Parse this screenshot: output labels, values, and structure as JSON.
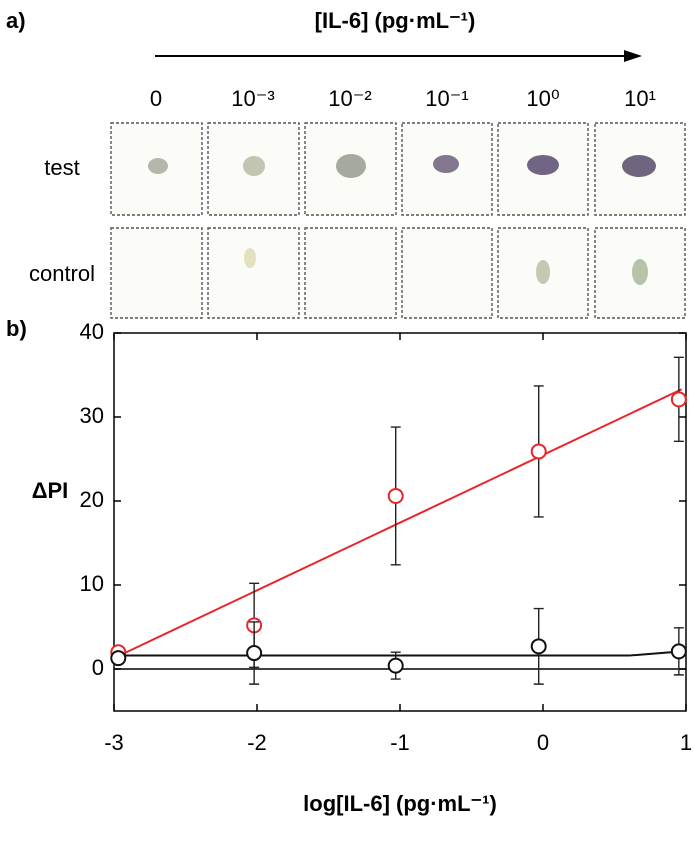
{
  "panel_a": {
    "label": "a)",
    "title": "[IL-6] (pg·mL⁻¹)",
    "columns": [
      "0",
      "10⁻³",
      "10⁻²",
      "10⁻¹",
      "10⁰",
      "10¹"
    ],
    "rows": [
      "test",
      "control"
    ]
  },
  "chart_data": {
    "type": "scatter",
    "panel_label": "b)",
    "x_label": "log[IL-6] (pg·mL⁻¹)",
    "y_label": "ΔPI",
    "x": [
      -2.97,
      -2.02,
      -1.03,
      -0.03,
      0.95
    ],
    "xlim": [
      -3,
      1
    ],
    "xticks": [
      -3,
      -2,
      -1,
      0,
      1
    ],
    "ylim": [
      -5,
      40
    ],
    "yticks": [
      0,
      10,
      20,
      30,
      40
    ],
    "baseline": 0,
    "series": [
      {
        "color": "#e8262a",
        "values": [
          2,
          5.2,
          20.6,
          25.9,
          32.1
        ],
        "errors": [
          0,
          5,
          8.2,
          7.8,
          5
        ],
        "fit": {
          "x": [
            -3,
            0.97
          ],
          "values": [
            1.3,
            33.3
          ]
        }
      },
      {
        "color": "#111111",
        "values": [
          1.3,
          1.9,
          0.4,
          2.7,
          2.1
        ],
        "errors": [
          0,
          3.7,
          1.6,
          4.5,
          2.8
        ],
        "fit": {
          "x": [
            -3,
            0.6,
            0.97
          ],
          "values": [
            1.6,
            1.6,
            2.1
          ]
        }
      }
    ]
  }
}
